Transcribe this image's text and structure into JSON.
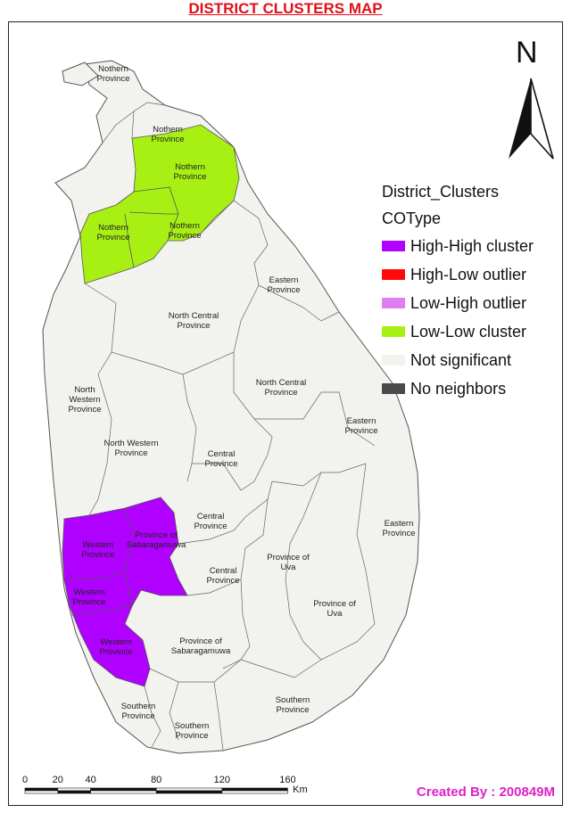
{
  "title": "DISTRICT CLUSTERS MAP",
  "legend": {
    "heading": "District_Clusters",
    "subheading": "COType",
    "items": [
      {
        "label": "High-High cluster",
        "color": "#b000ff"
      },
      {
        "label": "High-Low outlier",
        "color": "#ff0a0a"
      },
      {
        "label": "Low-High outlier",
        "color": "#e07df0"
      },
      {
        "label": "Low-Low cluster",
        "color": "#a8f014"
      },
      {
        "label": "Not significant",
        "color": "#f2f2ef"
      },
      {
        "label": "No neighbors",
        "color": "#4a4a4a"
      }
    ]
  },
  "north_arrow": {
    "label": "N"
  },
  "scale_bar": {
    "ticks": [
      "0",
      "20",
      "40",
      "80",
      "120",
      "160"
    ],
    "unit": "Km"
  },
  "credit": "Created By : 200849M",
  "districts": [
    {
      "label": "Nothern Province",
      "cluster": "Not significant"
    },
    {
      "label": "Nothern Province",
      "cluster": "Not significant"
    },
    {
      "label": "Nothern Province",
      "cluster": "Low-Low cluster"
    },
    {
      "label": "Nothern Province",
      "cluster": "Low-Low cluster"
    },
    {
      "label": "Nothern Province",
      "cluster": "Low-Low cluster"
    },
    {
      "label": "Eastern Province",
      "cluster": "Not significant"
    },
    {
      "label": "North Central Province",
      "cluster": "Not significant"
    },
    {
      "label": "North Western Province",
      "cluster": "Not significant"
    },
    {
      "label": "North Central Province",
      "cluster": "Not significant"
    },
    {
      "label": "Eastern Province",
      "cluster": "Not significant"
    },
    {
      "label": "North Western Province",
      "cluster": "Not significant"
    },
    {
      "label": "Central Province",
      "cluster": "Not significant"
    },
    {
      "label": "Central Province",
      "cluster": "Not significant"
    },
    {
      "label": "Eastern Province",
      "cluster": "Not significant"
    },
    {
      "label": "Western Province",
      "cluster": "High-High cluster"
    },
    {
      "label": "Province of Sabaragamuwa",
      "cluster": "High-High cluster"
    },
    {
      "label": "Province of Uva",
      "cluster": "Not significant"
    },
    {
      "label": "Central Province",
      "cluster": "Not significant"
    },
    {
      "label": "Western Province",
      "cluster": "High-High cluster"
    },
    {
      "label": "Province of Uva",
      "cluster": "Not significant"
    },
    {
      "label": "Western Province",
      "cluster": "High-High cluster"
    },
    {
      "label": "Province of Sabaragamuwa",
      "cluster": "Not significant"
    },
    {
      "label": "Southern Province",
      "cluster": "Not significant"
    },
    {
      "label": "Southern Province",
      "cluster": "Not significant"
    },
    {
      "label": "Southern Province",
      "cluster": "Not significant"
    }
  ]
}
